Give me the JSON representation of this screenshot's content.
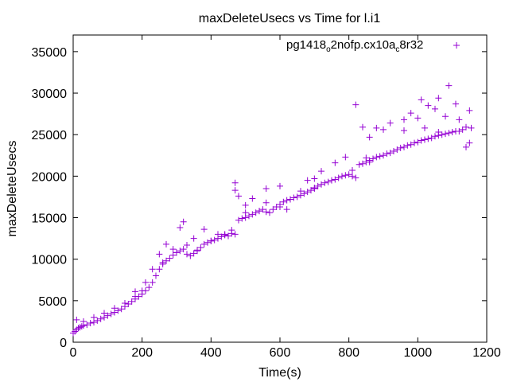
{
  "chart_data": {
    "type": "scatter",
    "title": "maxDeleteUsecs vs Time for l.i1",
    "xlabel": "Time(s)",
    "ylabel": "maxDeleteUsecs",
    "xlim": [
      0,
      1200
    ],
    "ylim": [
      0,
      37000
    ],
    "x_ticks": [
      0,
      200,
      400,
      600,
      800,
      1000,
      1200
    ],
    "y_ticks": [
      0,
      5000,
      10000,
      15000,
      20000,
      25000,
      30000,
      35000
    ],
    "grid": false,
    "legend_position": "top-right",
    "marker": "+",
    "series": [
      {
        "name_parts": [
          "pg1418",
          "o",
          "2nofp.cx10a",
          "c",
          "8r32"
        ],
        "color": "#9400d3",
        "points": [
          [
            0,
            1100
          ],
          [
            5,
            1300
          ],
          [
            10,
            1500
          ],
          [
            15,
            1700
          ],
          [
            20,
            1800
          ],
          [
            25,
            1900
          ],
          [
            30,
            2000
          ],
          [
            40,
            2100
          ],
          [
            50,
            2300
          ],
          [
            60,
            2400
          ],
          [
            70,
            2600
          ],
          [
            80,
            2800
          ],
          [
            90,
            3000
          ],
          [
            100,
            3200
          ],
          [
            110,
            3400
          ],
          [
            120,
            3600
          ],
          [
            130,
            3800
          ],
          [
            140,
            4000
          ],
          [
            150,
            4300
          ],
          [
            160,
            4600
          ],
          [
            170,
            4900
          ],
          [
            180,
            5200
          ],
          [
            190,
            5500
          ],
          [
            200,
            5800
          ],
          [
            210,
            6200
          ],
          [
            220,
            6600
          ],
          [
            230,
            7200
          ],
          [
            240,
            8000
          ],
          [
            250,
            8800
          ],
          [
            260,
            9400
          ],
          [
            270,
            9800
          ],
          [
            280,
            10100
          ],
          [
            290,
            10500
          ],
          [
            300,
            10800
          ],
          [
            310,
            11000
          ],
          [
            320,
            11200
          ],
          [
            330,
            10600
          ],
          [
            340,
            10400
          ],
          [
            350,
            10700
          ],
          [
            360,
            11000
          ],
          [
            370,
            11400
          ],
          [
            380,
            11800
          ],
          [
            390,
            12000
          ],
          [
            400,
            12200
          ],
          [
            410,
            12300
          ],
          [
            420,
            12500
          ],
          [
            430,
            12700
          ],
          [
            440,
            13000
          ],
          [
            450,
            12800
          ],
          [
            460,
            13100
          ],
          [
            470,
            13000
          ],
          [
            480,
            14700
          ],
          [
            490,
            14900
          ],
          [
            500,
            15000
          ],
          [
            510,
            15200
          ],
          [
            520,
            15400
          ],
          [
            530,
            15600
          ],
          [
            540,
            15800
          ],
          [
            550,
            16000
          ],
          [
            560,
            15700
          ],
          [
            570,
            15600
          ],
          [
            580,
            16000
          ],
          [
            590,
            16300
          ],
          [
            600,
            16600
          ],
          [
            610,
            16900
          ],
          [
            620,
            17100
          ],
          [
            630,
            17200
          ],
          [
            640,
            17400
          ],
          [
            650,
            17500
          ],
          [
            660,
            17700
          ],
          [
            670,
            17900
          ],
          [
            680,
            18100
          ],
          [
            690,
            18300
          ],
          [
            700,
            18500
          ],
          [
            710,
            18800
          ],
          [
            720,
            19000
          ],
          [
            730,
            19200
          ],
          [
            740,
            19300
          ],
          [
            750,
            19500
          ],
          [
            760,
            19600
          ],
          [
            770,
            19800
          ],
          [
            780,
            20000
          ],
          [
            790,
            20100
          ],
          [
            800,
            20200
          ],
          [
            810,
            20000
          ],
          [
            820,
            19800
          ],
          [
            830,
            21400
          ],
          [
            840,
            21500
          ],
          [
            850,
            21700
          ],
          [
            860,
            21900
          ],
          [
            870,
            22100
          ],
          [
            880,
            22300
          ],
          [
            890,
            22400
          ],
          [
            900,
            22500
          ],
          [
            910,
            22700
          ],
          [
            920,
            22800
          ],
          [
            930,
            23000
          ],
          [
            940,
            23200
          ],
          [
            950,
            23400
          ],
          [
            960,
            23500
          ],
          [
            970,
            23700
          ],
          [
            980,
            23800
          ],
          [
            990,
            24000
          ],
          [
            1000,
            24100
          ],
          [
            1010,
            24300
          ],
          [
            1020,
            24400
          ],
          [
            1030,
            24500
          ],
          [
            1040,
            24600
          ],
          [
            1050,
            24800
          ],
          [
            1060,
            24900
          ],
          [
            1070,
            25000
          ],
          [
            1080,
            25100
          ],
          [
            1090,
            25200
          ],
          [
            1100,
            25300
          ],
          [
            1110,
            25400
          ],
          [
            1120,
            25400
          ],
          [
            1130,
            25600
          ],
          [
            1140,
            23500
          ],
          [
            1150,
            24000
          ],
          [
            1155,
            25800
          ],
          [
            10,
            2700
          ],
          [
            30,
            2500
          ],
          [
            60,
            3000
          ],
          [
            90,
            3500
          ],
          [
            120,
            4100
          ],
          [
            150,
            4700
          ],
          [
            180,
            5500
          ],
          [
            210,
            7200
          ],
          [
            230,
            8800
          ],
          [
            250,
            10600
          ],
          [
            260,
            9600
          ],
          [
            270,
            11800
          ],
          [
            290,
            11200
          ],
          [
            310,
            13800
          ],
          [
            320,
            14500
          ],
          [
            350,
            12500
          ],
          [
            380,
            13600
          ],
          [
            420,
            13000
          ],
          [
            440,
            12900
          ],
          [
            460,
            13500
          ],
          [
            470,
            19200
          ],
          [
            470,
            18300
          ],
          [
            480,
            17600
          ],
          [
            500,
            16500
          ],
          [
            520,
            17300
          ],
          [
            560,
            18500
          ],
          [
            600,
            18800
          ],
          [
            620,
            16000
          ],
          [
            660,
            18200
          ],
          [
            680,
            19500
          ],
          [
            700,
            19700
          ],
          [
            720,
            20600
          ],
          [
            760,
            21600
          ],
          [
            790,
            22300
          ],
          [
            810,
            20700
          ],
          [
            820,
            28600
          ],
          [
            840,
            25900
          ],
          [
            860,
            24700
          ],
          [
            880,
            25800
          ],
          [
            900,
            25600
          ],
          [
            920,
            26400
          ],
          [
            960,
            26800
          ],
          [
            980,
            27600
          ],
          [
            1000,
            27000
          ],
          [
            1010,
            29200
          ],
          [
            1030,
            28500
          ],
          [
            1060,
            29400
          ],
          [
            1090,
            30900
          ],
          [
            1110,
            28700
          ],
          [
            1150,
            27900
          ],
          [
            1050,
            28100
          ],
          [
            1080,
            27200
          ],
          [
            1120,
            26800
          ],
          [
            1140,
            25900
          ],
          [
            1020,
            25800
          ],
          [
            1060,
            25300
          ],
          [
            850,
            22200
          ],
          [
            860,
            21700
          ],
          [
            960,
            25500
          ],
          [
            700,
            18600
          ],
          [
            560,
            16800
          ],
          [
            540,
            15800
          ],
          [
            600,
            16300
          ],
          [
            500,
            15600
          ],
          [
            300,
            10800
          ],
          [
            330,
            11700
          ],
          [
            360,
            11100
          ],
          [
            400,
            12200
          ],
          [
            200,
            6200
          ],
          [
            180,
            6100
          ]
        ]
      }
    ]
  }
}
